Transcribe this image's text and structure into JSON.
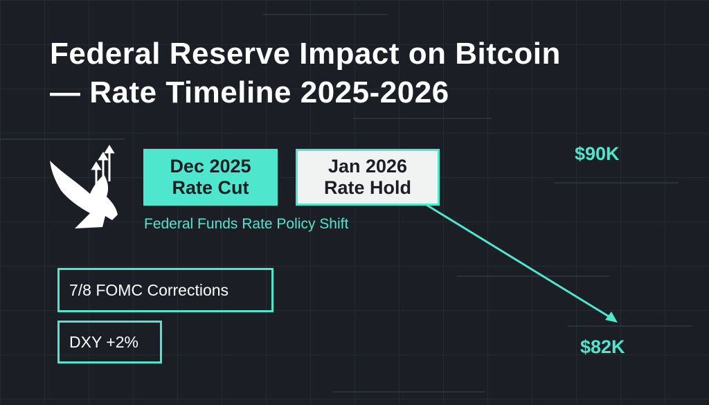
{
  "title": {
    "line1": "Federal Reserve Impact on Bitcoin",
    "line2": "— Rate Timeline 2025-2026"
  },
  "events": [
    {
      "date": "Dec 2025",
      "label": "Rate Cut"
    },
    {
      "date": "Jan 2026",
      "label": "Rate Hold"
    }
  ],
  "subtitle": "Federal Funds Rate Policy Shift",
  "prices": {
    "high": "$90K",
    "low": "$82K"
  },
  "stats": [
    "7/8 FOMC Corrections",
    "DXY +2%"
  ],
  "colors": {
    "accent": "#4ee6cd",
    "background": "#1b1e25"
  },
  "icons": [
    "eagle-icon",
    "up-arrows-icon",
    "trend-arrow-icon"
  ]
}
